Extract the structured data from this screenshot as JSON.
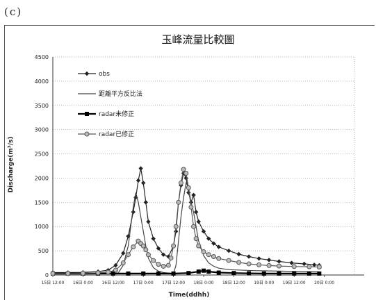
{
  "panel_label": "(c)",
  "chart_data": {
    "type": "line",
    "title": "玉峰流量比較圖",
    "xlabel": "Time(ddhh)",
    "ylabel": "Discharge(m³/s)",
    "ylim": [
      0,
      4500
    ],
    "yticks": [
      0,
      500,
      1000,
      1500,
      2000,
      2500,
      3000,
      3500,
      4000,
      4500
    ],
    "xlim": [
      0,
      120
    ],
    "xticks": [
      {
        "x": 0,
        "label": "15日 12:00"
      },
      {
        "x": 12,
        "label": "16日 0:00"
      },
      {
        "x": 24,
        "label": "16日 12:00"
      },
      {
        "x": 36,
        "label": "17日 0:00"
      },
      {
        "x": 48,
        "label": "17日 12:00"
      },
      {
        "x": 60,
        "label": "18日 0:00"
      },
      {
        "x": 72,
        "label": "18日 12:00"
      },
      {
        "x": 84,
        "label": "19日 0:00"
      },
      {
        "x": 96,
        "label": "19日 12:00"
      },
      {
        "x": 108,
        "label": "20日 0:00"
      }
    ],
    "grid": "horizontal dotted",
    "legend_position": "top-left",
    "series": [
      {
        "name": "obs",
        "color": "#222222",
        "marker": "diamond",
        "points": [
          [
            0,
            50
          ],
          [
            6,
            50
          ],
          [
            12,
            55
          ],
          [
            18,
            70
          ],
          [
            22,
            100
          ],
          [
            25,
            200
          ],
          [
            28,
            450
          ],
          [
            30,
            800
          ],
          [
            32,
            1300
          ],
          [
            33,
            1600
          ],
          [
            34,
            1950
          ],
          [
            35,
            2200
          ],
          [
            36,
            1900
          ],
          [
            37,
            1500
          ],
          [
            38,
            1100
          ],
          [
            40,
            750
          ],
          [
            42,
            550
          ],
          [
            44,
            420
          ],
          [
            46,
            380
          ],
          [
            48,
            600
          ],
          [
            49,
            900
          ],
          [
            50,
            1500
          ],
          [
            51,
            1850
          ],
          [
            52,
            2100
          ],
          [
            53,
            2000
          ],
          [
            54,
            1700
          ],
          [
            55,
            1500
          ],
          [
            56,
            1650
          ],
          [
            57,
            1300
          ],
          [
            58,
            1100
          ],
          [
            60,
            900
          ],
          [
            62,
            750
          ],
          [
            64,
            650
          ],
          [
            66,
            580
          ],
          [
            70,
            500
          ],
          [
            74,
            430
          ],
          [
            78,
            380
          ],
          [
            82,
            340
          ],
          [
            86,
            310
          ],
          [
            90,
            280
          ],
          [
            95,
            250
          ],
          [
            100,
            230
          ],
          [
            104,
            210
          ],
          [
            106,
            200
          ]
        ]
      },
      {
        "name": "距離平方反比法",
        "color": "#444444",
        "marker": "none",
        "points": [
          [
            0,
            20
          ],
          [
            10,
            20
          ],
          [
            20,
            25
          ],
          [
            26,
            40
          ],
          [
            28,
            200
          ],
          [
            30,
            600
          ],
          [
            31,
            1000
          ],
          [
            32,
            1400
          ],
          [
            33,
            1700
          ],
          [
            34,
            1500
          ],
          [
            35,
            1200
          ],
          [
            36,
            900
          ],
          [
            37,
            600
          ],
          [
            38,
            350
          ],
          [
            40,
            150
          ],
          [
            42,
            80
          ],
          [
            44,
            50
          ],
          [
            46,
            40
          ],
          [
            48,
            30
          ],
          [
            49,
            200
          ],
          [
            50,
            700
          ],
          [
            51,
            1200
          ],
          [
            52,
            1600
          ],
          [
            53,
            1900
          ],
          [
            54,
            1800
          ],
          [
            55,
            1500
          ],
          [
            56,
            1300
          ],
          [
            57,
            1000
          ],
          [
            58,
            700
          ],
          [
            60,
            400
          ],
          [
            62,
            250
          ],
          [
            64,
            180
          ],
          [
            66,
            140
          ],
          [
            70,
            110
          ],
          [
            80,
            90
          ],
          [
            90,
            80
          ],
          [
            100,
            70
          ],
          [
            106,
            65
          ]
        ]
      },
      {
        "name": "radar未修正",
        "color": "#000000",
        "marker": "square",
        "points": [
          [
            0,
            30
          ],
          [
            6,
            30
          ],
          [
            12,
            30
          ],
          [
            18,
            30
          ],
          [
            24,
            30
          ],
          [
            30,
            30
          ],
          [
            36,
            30
          ],
          [
            42,
            30
          ],
          [
            48,
            30
          ],
          [
            54,
            40
          ],
          [
            58,
            70
          ],
          [
            60,
            90
          ],
          [
            62,
            70
          ],
          [
            66,
            50
          ],
          [
            72,
            40
          ],
          [
            78,
            35
          ],
          [
            84,
            30
          ],
          [
            90,
            30
          ],
          [
            96,
            30
          ],
          [
            102,
            30
          ],
          [
            106,
            30
          ]
        ]
      },
      {
        "name": "radar已修正",
        "color": "#555555",
        "marker": "circle",
        "points": [
          [
            0,
            30
          ],
          [
            6,
            30
          ],
          [
            12,
            35
          ],
          [
            18,
            45
          ],
          [
            22,
            60
          ],
          [
            25,
            100
          ],
          [
            28,
            250
          ],
          [
            30,
            420
          ],
          [
            32,
            580
          ],
          [
            34,
            700
          ],
          [
            35,
            650
          ],
          [
            36,
            600
          ],
          [
            37,
            520
          ],
          [
            38,
            420
          ],
          [
            40,
            300
          ],
          [
            42,
            220
          ],
          [
            44,
            180
          ],
          [
            46,
            200
          ],
          [
            47,
            350
          ],
          [
            48,
            600
          ],
          [
            49,
            1000
          ],
          [
            50,
            1500
          ],
          [
            51,
            1900
          ],
          [
            52,
            2180
          ],
          [
            53,
            2100
          ],
          [
            54,
            1800
          ],
          [
            55,
            1400
          ],
          [
            56,
            1000
          ],
          [
            57,
            750
          ],
          [
            58,
            600
          ],
          [
            60,
            480
          ],
          [
            62,
            420
          ],
          [
            64,
            380
          ],
          [
            66,
            340
          ],
          [
            70,
            300
          ],
          [
            74,
            260
          ],
          [
            78,
            230
          ],
          [
            82,
            210
          ],
          [
            86,
            195
          ],
          [
            90,
            185
          ],
          [
            96,
            175
          ],
          [
            102,
            170
          ],
          [
            106,
            165
          ]
        ]
      }
    ]
  }
}
